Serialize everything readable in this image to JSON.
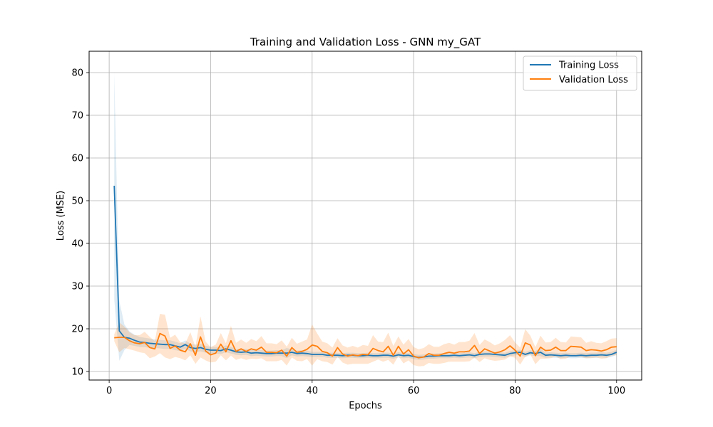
{
  "chart_data": {
    "type": "line",
    "title": "Training and Validation Loss - GNN my_GAT",
    "xlabel": "Epochs",
    "ylabel": "Loss (MSE)",
    "xlim": [
      -3.95,
      104.95
    ],
    "ylim": [
      8.0,
      85.0
    ],
    "xticks": [
      0,
      20,
      40,
      60,
      80,
      100
    ],
    "yticks": [
      10,
      20,
      30,
      40,
      50,
      60,
      70,
      80
    ],
    "grid": true,
    "legend_position": "top-right",
    "colors": {
      "training": "#1f77b4",
      "validation": "#ff7f0e"
    },
    "series": [
      {
        "name": "Training Loss",
        "color": "#1f77b4",
        "x": [
          1,
          2,
          3,
          4,
          5,
          6,
          7,
          8,
          9,
          10,
          11,
          12,
          13,
          14,
          15,
          16,
          17,
          18,
          19,
          20,
          21,
          22,
          23,
          24,
          25,
          26,
          27,
          28,
          29,
          30,
          31,
          32,
          33,
          34,
          35,
          36,
          37,
          38,
          39,
          40,
          41,
          42,
          43,
          44,
          45,
          46,
          47,
          48,
          49,
          50,
          51,
          52,
          53,
          54,
          55,
          56,
          57,
          58,
          59,
          60,
          61,
          62,
          63,
          64,
          65,
          66,
          67,
          68,
          69,
          70,
          71,
          72,
          73,
          74,
          75,
          76,
          77,
          78,
          79,
          80,
          81,
          82,
          83,
          84,
          85,
          86,
          87,
          88,
          89,
          90,
          91,
          92,
          93,
          94,
          95,
          96,
          97,
          98,
          99,
          100
        ],
        "values": [
          53.5,
          19.5,
          18.0,
          17.8,
          17.3,
          16.9,
          16.8,
          16.6,
          16.5,
          16.4,
          16.3,
          16.3,
          16.0,
          15.7,
          16.3,
          15.6,
          15.4,
          15.6,
          15.2,
          15.0,
          15.0,
          14.9,
          15.3,
          15.0,
          14.6,
          14.5,
          14.6,
          14.3,
          14.4,
          14.3,
          14.2,
          14.2,
          14.3,
          14.3,
          14.3,
          14.5,
          14.2,
          14.3,
          14.2,
          14.0,
          14.0,
          14.0,
          13.8,
          13.8,
          13.8,
          13.7,
          13.8,
          13.8,
          13.7,
          13.7,
          13.8,
          13.7,
          13.7,
          13.8,
          13.8,
          13.6,
          13.9,
          13.7,
          13.8,
          13.5,
          13.3,
          13.4,
          13.6,
          13.6,
          13.7,
          13.7,
          13.7,
          13.8,
          13.7,
          13.8,
          13.9,
          13.7,
          14.0,
          14.1,
          14.1,
          14.0,
          13.9,
          13.8,
          14.2,
          14.4,
          14.5,
          14.0,
          14.4,
          14.2,
          14.5,
          13.8,
          13.9,
          13.8,
          13.7,
          13.8,
          13.7,
          13.7,
          13.8,
          13.7,
          13.8,
          13.8,
          13.9,
          13.8,
          14.0,
          14.5
        ],
        "band_halfwidth": [
          26.5,
          7.0,
          3.0,
          1.6,
          1.3,
          1.2,
          1.1,
          1.1,
          1.0,
          1.0,
          1.0,
          1.0,
          1.0,
          0.9,
          1.0,
          0.9,
          0.9,
          0.9,
          0.8,
          0.8,
          0.8,
          0.8,
          0.8,
          0.8,
          0.7,
          0.7,
          0.7,
          0.7,
          0.7,
          0.7,
          0.7,
          0.7,
          0.7,
          0.7,
          1.2,
          0.7,
          0.7,
          0.7,
          0.7,
          0.6,
          0.6,
          0.6,
          0.6,
          0.6,
          0.6,
          0.6,
          0.6,
          0.6,
          0.6,
          0.6,
          0.6,
          0.6,
          0.6,
          0.6,
          0.6,
          0.6,
          0.6,
          0.6,
          0.6,
          0.6,
          0.6,
          0.6,
          0.6,
          0.6,
          0.6,
          0.6,
          0.6,
          0.6,
          0.6,
          0.6,
          0.6,
          0.6,
          0.6,
          0.6,
          0.6,
          0.6,
          0.6,
          0.6,
          0.6,
          0.6,
          0.6,
          0.6,
          0.6,
          0.6,
          0.9,
          0.6,
          0.6,
          0.6,
          0.6,
          0.6,
          0.6,
          0.6,
          0.6,
          0.6,
          0.6,
          0.6,
          0.6,
          0.6,
          0.6,
          0.6
        ]
      },
      {
        "name": "Validation Loss",
        "color": "#ff7f0e",
        "x": [
          1,
          2,
          3,
          4,
          5,
          6,
          7,
          8,
          9,
          10,
          11,
          12,
          13,
          14,
          15,
          16,
          17,
          18,
          19,
          20,
          21,
          22,
          23,
          24,
          25,
          26,
          27,
          28,
          29,
          30,
          31,
          32,
          33,
          34,
          35,
          36,
          37,
          38,
          39,
          40,
          41,
          42,
          43,
          44,
          45,
          46,
          47,
          48,
          49,
          50,
          51,
          52,
          53,
          54,
          55,
          56,
          57,
          58,
          59,
          60,
          61,
          62,
          63,
          64,
          65,
          66,
          67,
          68,
          69,
          70,
          71,
          72,
          73,
          74,
          75,
          76,
          77,
          78,
          79,
          80,
          81,
          82,
          83,
          84,
          85,
          86,
          87,
          88,
          89,
          90,
          91,
          92,
          93,
          94,
          95,
          96,
          97,
          98,
          99,
          100
        ],
        "values": [
          17.9,
          18.0,
          18.0,
          17.2,
          16.7,
          16.5,
          16.8,
          15.6,
          15.3,
          18.9,
          18.3,
          15.4,
          16.0,
          15.0,
          14.6,
          16.5,
          13.8,
          18.1,
          14.8,
          13.9,
          14.3,
          16.4,
          14.6,
          17.2,
          14.7,
          15.3,
          14.7,
          15.3,
          15.0,
          15.7,
          14.5,
          14.5,
          14.4,
          15.0,
          13.6,
          15.6,
          14.5,
          14.7,
          15.2,
          16.2,
          15.9,
          14.7,
          14.4,
          13.6,
          15.6,
          14.1,
          13.6,
          13.9,
          13.7,
          14.0,
          13.9,
          15.4,
          14.9,
          14.6,
          15.9,
          13.8,
          15.9,
          14.1,
          15.1,
          13.6,
          13.2,
          13.4,
          14.2,
          13.8,
          13.8,
          14.2,
          14.5,
          14.3,
          14.6,
          14.6,
          14.8,
          16.1,
          14.2,
          15.3,
          14.8,
          14.3,
          14.6,
          15.1,
          16.0,
          15.0,
          13.6,
          16.7,
          16.2,
          13.7,
          15.7,
          14.9,
          15.0,
          15.7,
          14.9,
          14.9,
          15.9,
          15.8,
          15.7,
          14.9,
          15.1,
          15.0,
          14.8,
          15.1,
          15.7,
          15.8
        ],
        "band_halfwidth": [
          0.8,
          3.5,
          2.5,
          2.0,
          1.8,
          2.0,
          2.5,
          2.5,
          1.8,
          4.6,
          5.0,
          2.5,
          2.6,
          1.9,
          2.0,
          2.7,
          2.0,
          4.8,
          2.2,
          1.8,
          2.0,
          2.6,
          2.0,
          3.5,
          2.0,
          2.2,
          2.0,
          2.3,
          2.1,
          2.6,
          2.1,
          2.1,
          2.0,
          2.3,
          2.2,
          2.3,
          2.0,
          2.3,
          2.3,
          4.8,
          3.0,
          2.3,
          2.2,
          2.0,
          2.2,
          2.0,
          2.0,
          2.1,
          1.9,
          2.2,
          2.1,
          3.1,
          2.1,
          2.3,
          3.2,
          2.2,
          2.3,
          2.2,
          2.5,
          2.1,
          2.0,
          2.1,
          2.2,
          2.0,
          2.0,
          2.2,
          2.2,
          2.0,
          2.3,
          2.3,
          2.4,
          2.9,
          2.0,
          2.2,
          2.1,
          1.8,
          2.0,
          2.3,
          2.5,
          1.8,
          2.0,
          3.2,
          2.2,
          2.0,
          2.7,
          1.9,
          1.9,
          2.2,
          2.0,
          1.9,
          2.3,
          2.3,
          2.3,
          1.8,
          2.0,
          1.7,
          1.8,
          2.0,
          2.0,
          2.0
        ]
      }
    ]
  }
}
